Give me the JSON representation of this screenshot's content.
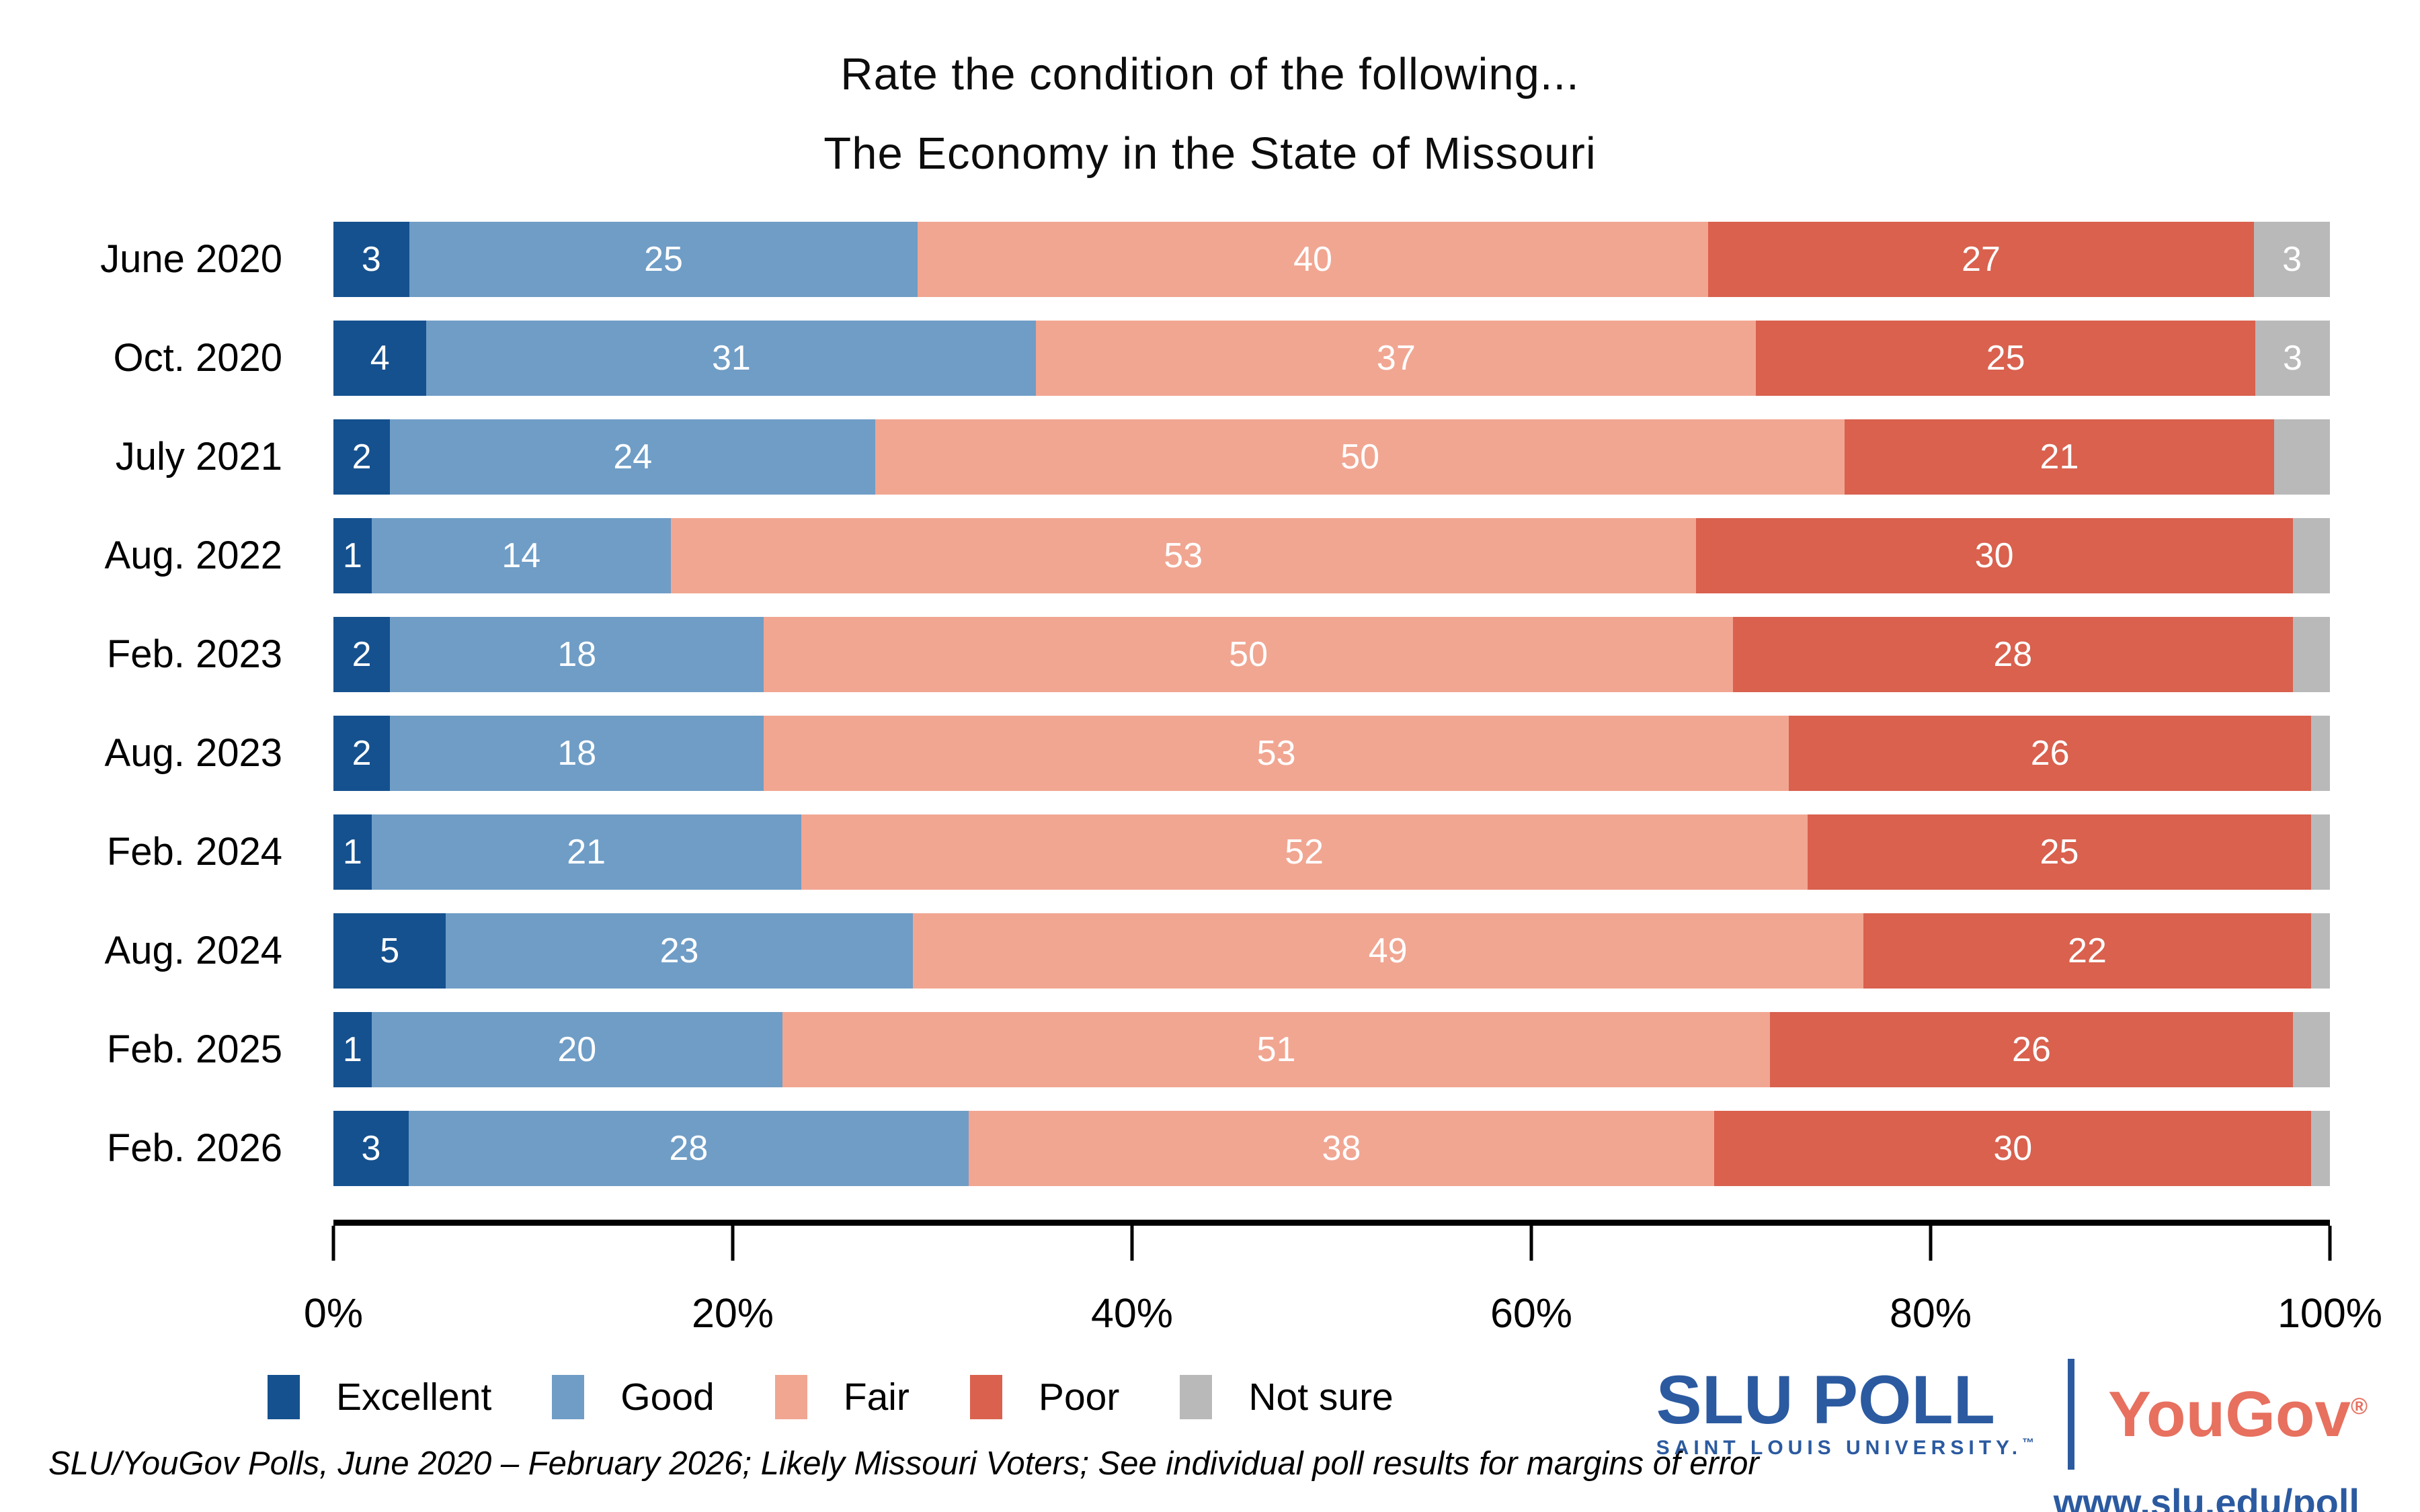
{
  "title": {
    "line1": "Rate the condition of the following...",
    "line2": "The Economy in the State of Missouri"
  },
  "chart_data": {
    "type": "bar",
    "variant": "stacked-horizontal",
    "title": "Rate the condition of the following... The Economy in the State of Missouri",
    "categories": [
      "June 2020",
      "Oct. 2020",
      "July 2021",
      "Aug. 2022",
      "Feb. 2023",
      "Aug. 2023",
      "Feb. 2024",
      "Aug. 2024",
      "Feb. 2025",
      "Feb. 2026"
    ],
    "series": [
      {
        "name": "Excellent",
        "color": "#15518f",
        "values": [
          3,
          4,
          2,
          1,
          2,
          2,
          1,
          5,
          1,
          3
        ]
      },
      {
        "name": "Good",
        "color": "#6f9dc6",
        "values": [
          25,
          31,
          24,
          14,
          18,
          18,
          21,
          23,
          20,
          28
        ]
      },
      {
        "name": "Fair",
        "color": "#f1a692",
        "values": [
          40,
          37,
          50,
          53,
          50,
          53,
          52,
          49,
          51,
          38
        ]
      },
      {
        "name": "Poor",
        "color": "#d9614e",
        "values": [
          27,
          25,
          21,
          30,
          28,
          26,
          25,
          22,
          26,
          30
        ]
      },
      {
        "name": "Not sure",
        "color": "#b9b9b9",
        "values": [
          3,
          3,
          3,
          2,
          2,
          1,
          1,
          1,
          2,
          1
        ],
        "value_labels": [
          "3",
          "3",
          "",
          "",
          "",
          "",
          "",
          "",
          "",
          ""
        ]
      }
    ],
    "xlim": [
      0,
      100
    ],
    "x_tick_labels": [
      "0%",
      "20%",
      "40%",
      "60%",
      "80%",
      "100%"
    ],
    "grid": false,
    "legend_position": "bottom-left",
    "value_labels_color": "#ffffff"
  },
  "footer": {
    "source_note": "SLU/YouGov Polls, June 2020 – February 2026; Likely Missouri Voters; See individual poll results for margins of error"
  },
  "branding": {
    "slu_poll": "SLU POLL",
    "slu_subtitle": "SAINT LOUIS UNIVERSITY.",
    "slu_trademark": "™",
    "yougov": "YouGov",
    "yougov_registered": "®",
    "website": "www.slu.edu/poll"
  }
}
